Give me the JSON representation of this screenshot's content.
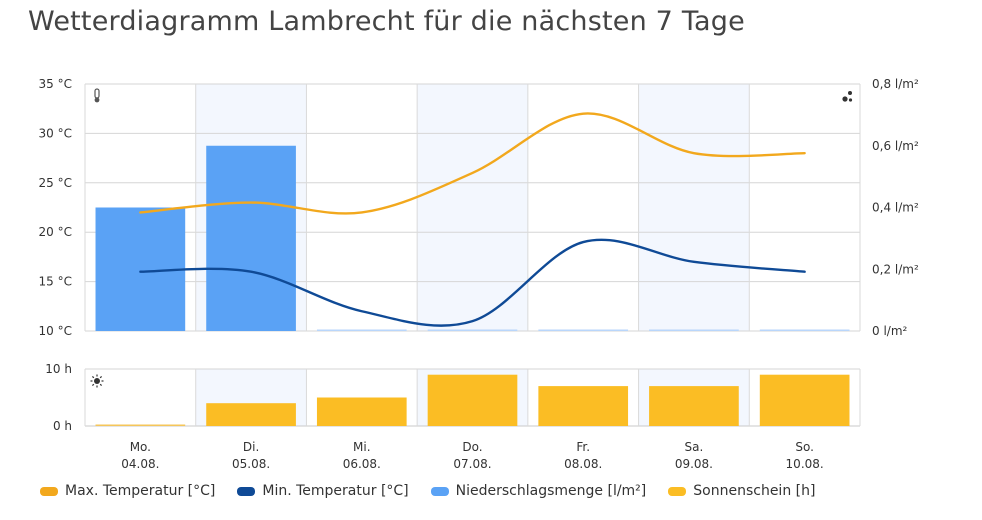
{
  "title": "Wetterdiagramm Lambrecht für die nächsten 7 Tage",
  "chart_data": {
    "type": "line",
    "categories": [
      {
        "day": "Mo.",
        "date": "04.08."
      },
      {
        "day": "Di.",
        "date": "05.08."
      },
      {
        "day": "Mi.",
        "date": "06.08."
      },
      {
        "day": "Do.",
        "date": "07.08."
      },
      {
        "day": "Fr.",
        "date": "08.08."
      },
      {
        "day": "Sa.",
        "date": "09.08."
      },
      {
        "day": "So.",
        "date": "10.08."
      }
    ],
    "temp_axis": {
      "ticks": [
        10,
        15,
        20,
        25,
        30,
        35
      ],
      "tick_labels": [
        "10 °C",
        "15 °C",
        "20 °C",
        "25 °C",
        "30 °C",
        "35 °C"
      ],
      "ylim": [
        10,
        35
      ]
    },
    "precip_axis": {
      "ticks": [
        0,
        0.2,
        0.4,
        0.6,
        0.8
      ],
      "tick_labels": [
        "0 l/m²",
        "0,2 l/m²",
        "0,4 l/m²",
        "0,6 l/m²",
        "0,8 l/m²"
      ],
      "ylim": [
        0,
        0.8
      ]
    },
    "sun_axis": {
      "ticks": [
        0,
        10
      ],
      "tick_labels": [
        "0 h",
        "10 h"
      ],
      "ylim": [
        0,
        10
      ]
    },
    "series": [
      {
        "name": "Max. Temperatur [°C]",
        "type": "line",
        "color": "#f2a81d",
        "values": [
          22,
          23,
          22,
          26,
          32,
          28,
          28
        ]
      },
      {
        "name": "Min. Temperatur [°C]",
        "type": "line",
        "color": "#0f4a96",
        "values": [
          16,
          16,
          12,
          11,
          19,
          17,
          16
        ]
      },
      {
        "name": "Niederschlagsmenge [l/m²]",
        "type": "bar",
        "color": "#5aa2f5",
        "values": [
          0.4,
          0.6,
          0,
          0,
          0,
          0,
          0
        ]
      },
      {
        "name": "Sonnenschein [h]",
        "type": "bar",
        "color": "#fbbd24",
        "values": [
          0,
          4,
          5,
          9,
          7,
          7,
          9
        ]
      }
    ],
    "grid": true,
    "legend_position": "bottom-left"
  },
  "icons": {
    "temperature": "thermometer-icon",
    "precipitation": "raindrops-icon",
    "sunshine": "sun-icon"
  }
}
